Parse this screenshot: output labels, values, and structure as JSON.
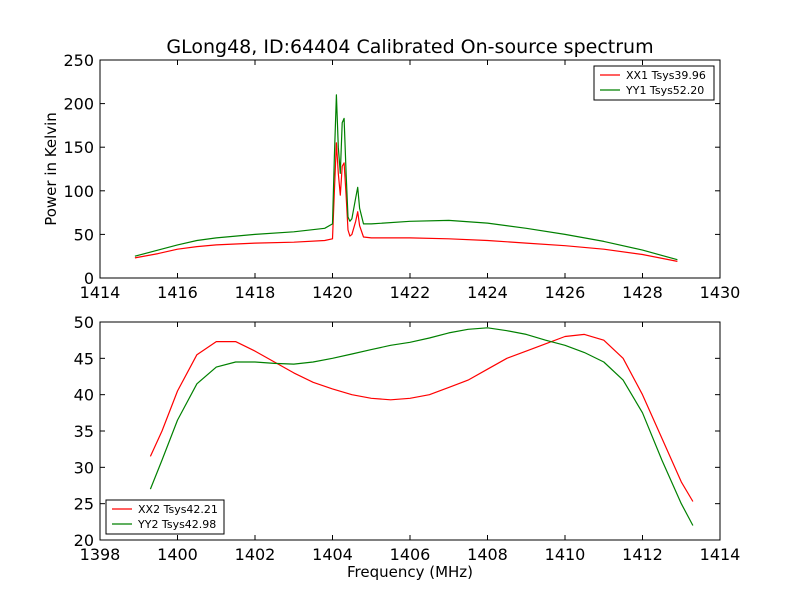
{
  "title": "GLong48, ID:64404 Calibrated On-source spectrum",
  "colors": {
    "red": "#ff0000",
    "green": "#008000"
  },
  "chart_data": [
    {
      "type": "line",
      "xlabel": "",
      "ylabel": "Power in Kelvin",
      "xlim": [
        1414,
        1430
      ],
      "ylim": [
        0,
        250
      ],
      "xticks": [
        1414,
        1416,
        1418,
        1420,
        1422,
        1424,
        1426,
        1428,
        1430
      ],
      "yticks": [
        0,
        50,
        100,
        150,
        200,
        250
      ],
      "legend_position": "top-right",
      "series": [
        {
          "name": "XX1 Tsys39.96",
          "color": "#ff0000",
          "x": [
            1414.9,
            1415.5,
            1416,
            1416.5,
            1417,
            1418,
            1419,
            1419.8,
            1420.0,
            1420.05,
            1420.1,
            1420.15,
            1420.2,
            1420.25,
            1420.3,
            1420.35,
            1420.4,
            1420.45,
            1420.5,
            1420.6,
            1420.65,
            1420.7,
            1420.8,
            1421,
            1422,
            1423,
            1424,
            1425,
            1426,
            1427,
            1428,
            1428.9
          ],
          "y": [
            23,
            28,
            33,
            36,
            38,
            40,
            41,
            43,
            45,
            100,
            155,
            120,
            95,
            128,
            132,
            95,
            55,
            48,
            50,
            65,
            76,
            60,
            47,
            46,
            46,
            45,
            43,
            40,
            37,
            33,
            27,
            19
          ]
        },
        {
          "name": "YY1 Tsys52.20",
          "color": "#008000",
          "x": [
            1414.9,
            1415.5,
            1416,
            1416.5,
            1417,
            1418,
            1419,
            1419.8,
            1420.0,
            1420.05,
            1420.1,
            1420.15,
            1420.2,
            1420.25,
            1420.3,
            1420.35,
            1420.4,
            1420.45,
            1420.5,
            1420.6,
            1420.65,
            1420.7,
            1420.8,
            1421,
            1422,
            1423,
            1424,
            1425,
            1426,
            1427,
            1428,
            1428.9
          ],
          "y": [
            25,
            32,
            38,
            43,
            46,
            50,
            53,
            57,
            62,
            140,
            210,
            150,
            120,
            178,
            183,
            120,
            70,
            65,
            68,
            92,
            104,
            80,
            62,
            62,
            65,
            66,
            63,
            57,
            50,
            42,
            32,
            21
          ]
        }
      ]
    },
    {
      "type": "line",
      "xlabel": "Frequency (MHz)",
      "ylabel": "",
      "xlim": [
        1398,
        1414
      ],
      "ylim": [
        20,
        50
      ],
      "xticks": [
        1398,
        1400,
        1402,
        1404,
        1406,
        1408,
        1410,
        1412,
        1414
      ],
      "yticks": [
        20,
        25,
        30,
        35,
        40,
        45,
        50
      ],
      "legend_position": "bottom-left",
      "series": [
        {
          "name": "XX2 Tsys42.21",
          "color": "#ff0000",
          "x": [
            1399.3,
            1399.6,
            1400,
            1400.5,
            1401,
            1401.5,
            1402,
            1402.5,
            1403,
            1403.5,
            1404,
            1404.5,
            1405,
            1405.5,
            1406,
            1406.5,
            1407,
            1407.5,
            1408,
            1408.5,
            1409,
            1409.5,
            1410,
            1410.5,
            1411,
            1411.5,
            1412,
            1412.5,
            1413,
            1413.3
          ],
          "y": [
            31.5,
            35,
            40.5,
            45.5,
            47.3,
            47.3,
            46,
            44.5,
            43,
            41.7,
            40.8,
            40,
            39.5,
            39.3,
            39.5,
            40,
            41,
            42,
            43.5,
            45,
            46,
            47,
            48,
            48.3,
            47.5,
            45,
            40,
            34,
            28,
            25.3
          ]
        },
        {
          "name": "YY2 Tsys42.98",
          "color": "#008000",
          "x": [
            1399.3,
            1399.6,
            1400,
            1400.5,
            1401,
            1401.5,
            1402,
            1402.5,
            1403,
            1403.5,
            1404,
            1404.5,
            1405,
            1405.5,
            1406,
            1406.5,
            1407,
            1407.5,
            1408,
            1408.5,
            1409,
            1409.5,
            1410,
            1410.5,
            1411,
            1411.5,
            1412,
            1412.5,
            1413,
            1413.3
          ],
          "y": [
            27,
            31,
            36.5,
            41.5,
            43.8,
            44.5,
            44.5,
            44.3,
            44.2,
            44.5,
            45,
            45.6,
            46.2,
            46.8,
            47.2,
            47.8,
            48.5,
            49,
            49.2,
            48.8,
            48.3,
            47.5,
            46.8,
            45.8,
            44.5,
            42,
            37.5,
            31,
            25,
            22
          ]
        }
      ]
    }
  ]
}
